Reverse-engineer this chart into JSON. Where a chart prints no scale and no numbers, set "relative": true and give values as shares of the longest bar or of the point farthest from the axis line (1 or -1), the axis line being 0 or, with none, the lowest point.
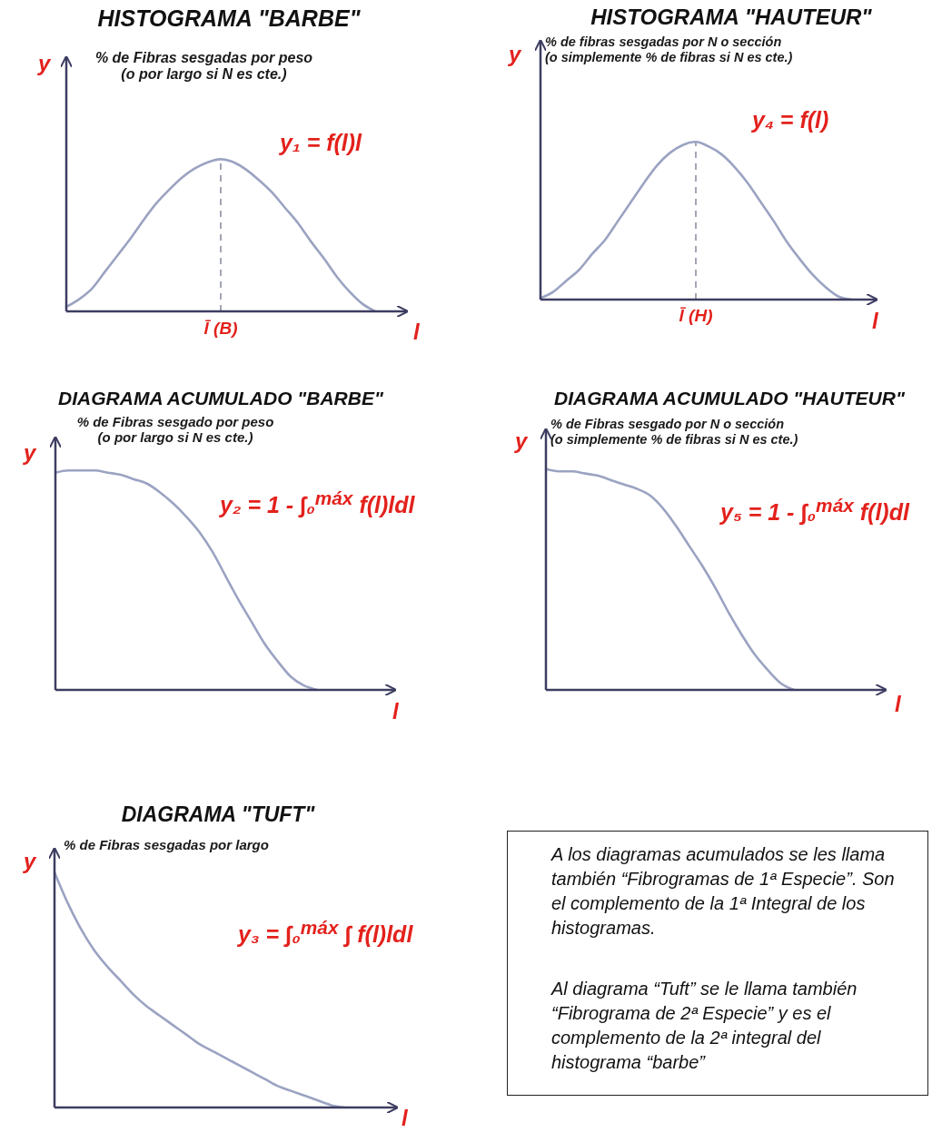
{
  "chart_data": [
    {
      "type": "line",
      "relative": true,
      "title": "HISTOGRAMA \"BARBE\"",
      "subtitle": "% de Fibras sesgadas por peso\n(o por largo si N es cte.)",
      "ylabel": "y",
      "xlabel": "l",
      "annotations": [
        "y₁ = f(l)l",
        "l̄ (B)"
      ],
      "categories": [
        null,
        null,
        null,
        null,
        null,
        null,
        null,
        null,
        null,
        null,
        null,
        null,
        null,
        null,
        null,
        null,
        null,
        null,
        null,
        null,
        null,
        null,
        null,
        null,
        null
      ],
      "values": [
        0.03,
        0.08,
        0.15,
        0.26,
        0.37,
        0.48,
        0.6,
        0.71,
        0.8,
        0.88,
        0.94,
        0.98,
        1,
        0.98,
        0.93,
        0.86,
        0.78,
        0.68,
        0.58,
        0.46,
        0.35,
        0.23,
        0.13,
        0.05,
        0
      ],
      "color": "#9ba3c2"
    },
    {
      "type": "line",
      "relative": true,
      "title": "HISTOGRAMA \"HAUTEUR\"",
      "subtitle": "% de fibras sesgadas por N o sección\n(o simplemente % de fibras si N es cte.)",
      "ylabel": "y",
      "xlabel": "l",
      "annotations": [
        "y₄ = f(l)",
        "l̄ (H)"
      ],
      "categories": [
        null,
        null,
        null,
        null,
        null,
        null,
        null,
        null,
        null,
        null,
        null,
        null,
        null,
        null,
        null,
        null,
        null,
        null,
        null,
        null,
        null,
        null,
        null,
        null,
        null
      ],
      "values": [
        0.01,
        0.05,
        0.12,
        0.19,
        0.29,
        0.38,
        0.5,
        0.62,
        0.74,
        0.85,
        0.93,
        0.98,
        1,
        0.97,
        0.92,
        0.84,
        0.74,
        0.62,
        0.5,
        0.37,
        0.26,
        0.16,
        0.08,
        0.02,
        0
      ],
      "color": "#9ba3c2"
    },
    {
      "type": "line",
      "relative": true,
      "title": "DIAGRAMA ACUMULADO \"BARBE\"",
      "subtitle": "% de Fibras sesgado por peso\n(o por largo si N es cte.)",
      "ylabel": "y",
      "xlabel": "l",
      "annotations": [
        "y₂ = 1 - ∫₀$^{máx}$ f(l)ldl"
      ],
      "categories": [
        null,
        null,
        null,
        null,
        null,
        null,
        null,
        null,
        null,
        null,
        null,
        null,
        null,
        null,
        null,
        null,
        null,
        null,
        null,
        null,
        null
      ],
      "values": [
        0.99,
        1,
        1,
        1,
        0.99,
        0.98,
        0.96,
        0.94,
        0.9,
        0.85,
        0.79,
        0.72,
        0.63,
        0.52,
        0.41,
        0.31,
        0.21,
        0.13,
        0.06,
        0.02,
        0
      ],
      "color": "#9ba3c2"
    },
    {
      "type": "line",
      "relative": true,
      "title": "DIAGRAMA ACUMULADO \"HAUTEUR\"",
      "subtitle": "% de Fibras sesgado por N o sección\n(o simplemente % de fibras si N es cte.)",
      "ylabel": "y",
      "xlabel": "l",
      "annotations": [
        "y₅ = 1 - ∫₀$^{máx}$ f(l)dl"
      ],
      "categories": [
        null,
        null,
        null,
        null,
        null,
        null,
        null,
        null,
        null,
        null,
        null,
        null,
        null,
        null,
        null,
        null,
        null,
        null,
        null,
        null
      ],
      "values": [
        1,
        0.99,
        0.99,
        0.98,
        0.97,
        0.95,
        0.93,
        0.91,
        0.88,
        0.82,
        0.74,
        0.65,
        0.56,
        0.46,
        0.35,
        0.25,
        0.16,
        0.09,
        0.03,
        0
      ],
      "color": "#9ba3c2"
    },
    {
      "type": "line",
      "relative": true,
      "title": "DIAGRAMA \"TUFT\"",
      "subtitle": "% de Fibras sesgadas por largo",
      "ylabel": "y",
      "xlabel": "l",
      "annotations": [
        "y₃ = ∫₀$^{máx}$ ∫ f(l)ldl"
      ],
      "categories": [
        null,
        null,
        null,
        null,
        null,
        null,
        null,
        null,
        null,
        null,
        null,
        null,
        null,
        null,
        null,
        null,
        null,
        null,
        null,
        null,
        null,
        null,
        null
      ],
      "values": [
        1,
        0.87,
        0.76,
        0.67,
        0.6,
        0.54,
        0.48,
        0.43,
        0.39,
        0.35,
        0.31,
        0.27,
        0.24,
        0.21,
        0.18,
        0.15,
        0.12,
        0.09,
        0.07,
        0.05,
        0.03,
        0.01,
        0
      ],
      "color": "#9ba3c2"
    },
    {
      "type": "other",
      "annotations": [
        "A los diagramas acumulados se les llama también “Fibrogramas de 1ª Especie”. Son el complemento de la 1ª Integral de los histogramas.",
        "Al diagrama “Tuft” se le llama también “Fibrograma de 2ª Especie” y es el complemento de la 2ª integral del histograma “barbe”"
      ]
    }
  ]
}
